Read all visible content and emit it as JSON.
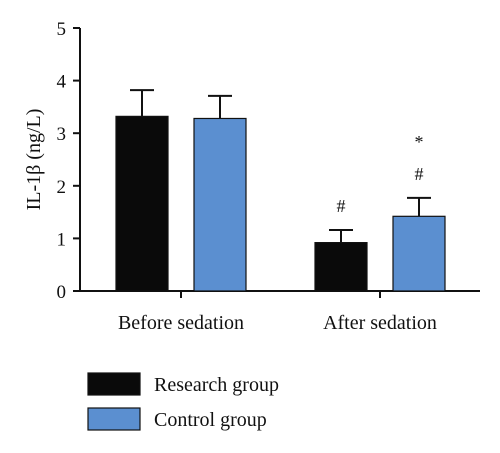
{
  "chart_data": {
    "type": "bar",
    "categories": [
      "Before sedation",
      "After sedation"
    ],
    "series": [
      {
        "name": "Research group",
        "values": [
          3.32,
          0.92
        ],
        "errors": [
          0.5,
          0.24
        ],
        "color": "#0a0a0a",
        "annotations": [
          "",
          "#"
        ]
      },
      {
        "name": "Control group",
        "values": [
          3.28,
          1.42
        ],
        "errors": [
          0.43,
          0.35
        ],
        "color": "#5b8fd0",
        "annotations": [
          "",
          "#|*"
        ]
      }
    ],
    "ylabel": "IL-1β (ng/L)",
    "ylim": [
      0,
      5
    ],
    "yticks": [
      "0",
      "1",
      "2",
      "3",
      "4",
      "5"
    ],
    "grid": false,
    "legend_position": "bottom-left"
  }
}
